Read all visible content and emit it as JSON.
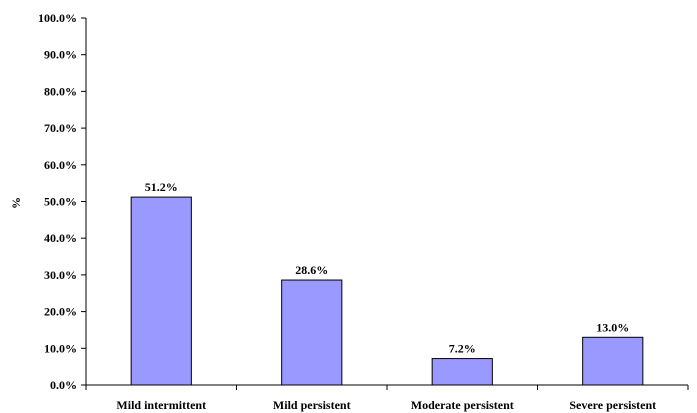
{
  "chart_data": {
    "type": "bar",
    "categories": [
      "Mild intermittent",
      "Mild persistent",
      "Moderate persistent",
      "Severe persistent"
    ],
    "values": [
      51.2,
      28.6,
      7.2,
      13.0
    ],
    "data_labels": [
      "51.2%",
      "28.6%",
      "7.2%",
      "13.0%"
    ],
    "title": "",
    "xlabel": "",
    "ylabel": "%",
    "ylim": [
      0,
      100
    ],
    "yticks": [
      0,
      10,
      20,
      30,
      40,
      50,
      60,
      70,
      80,
      90,
      100
    ],
    "ytick_labels": [
      "0.0%",
      "10.0%",
      "20.0%",
      "30.0%",
      "40.0%",
      "50.0%",
      "60.0%",
      "70.0%",
      "80.0%",
      "90.0%",
      "100.0%"
    ],
    "grid": false,
    "legend": "none",
    "bar_color": "#9999ff",
    "bar_edge_color": "#000000"
  }
}
